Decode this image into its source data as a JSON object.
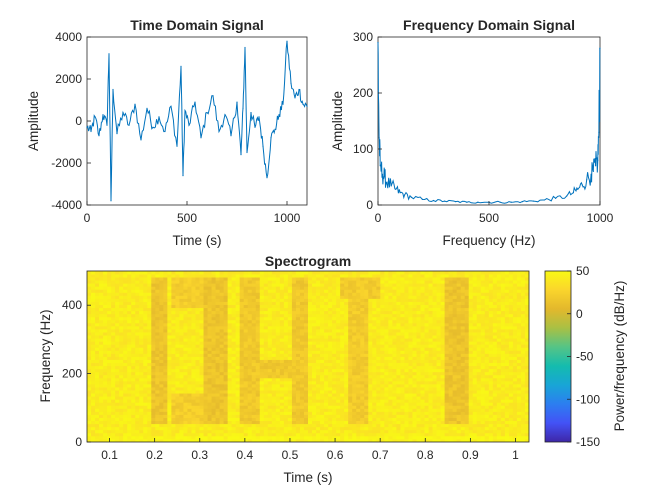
{
  "chart_data": [
    {
      "type": "line",
      "title": "Time Domain Signal",
      "xlabel": "Time (s)",
      "ylabel": "Amplitude",
      "xlim": [
        0,
        1100
      ],
      "ylim": [
        -4000,
        4000
      ],
      "xticks": [
        0,
        500,
        1000
      ],
      "yticks": [
        -4000,
        -2000,
        0,
        2000,
        4000
      ],
      "xtick_labels": [
        "0",
        "500",
        "1000"
      ],
      "ytick_labels": [
        "-4000",
        "-2000",
        "0",
        "2000",
        "4000"
      ],
      "grid": false,
      "series_color": "#0072BD",
      "x": [
        0,
        20,
        40,
        60,
        80,
        100,
        110,
        120,
        130,
        150,
        180,
        210,
        240,
        270,
        300,
        330,
        360,
        390,
        420,
        450,
        470,
        480,
        490,
        510,
        540,
        570,
        600,
        630,
        660,
        690,
        720,
        750,
        770,
        780,
        790,
        800,
        820,
        840,
        860,
        880,
        900,
        920,
        940,
        960,
        980,
        1000,
        1020,
        1040,
        1060,
        1080,
        1100
      ],
      "y": [
        -300,
        -500,
        200,
        -700,
        300,
        -200,
        3200,
        -3800,
        1500,
        -600,
        400,
        -200,
        800,
        -900,
        600,
        -300,
        200,
        -500,
        700,
        -1200,
        2600,
        -2600,
        500,
        -200,
        900,
        -800,
        400,
        1200,
        -500,
        300,
        -700,
        900,
        -1600,
        600,
        3500,
        -1500,
        400,
        -300,
        200,
        -1200,
        -2700,
        -800,
        -400,
        300,
        800,
        3800,
        1800,
        1100,
        1500,
        800,
        700
      ]
    },
    {
      "type": "line",
      "title": "Frequency Domain Signal",
      "xlabel": "Frequency (Hz)",
      "ylabel": "Amplitude",
      "xlim": [
        0,
        1000
      ],
      "ylim": [
        0,
        300
      ],
      "xticks": [
        0,
        500,
        1000
      ],
      "yticks": [
        0,
        100,
        200,
        300
      ],
      "xtick_labels": [
        "0",
        "500",
        "1000"
      ],
      "ytick_labels": [
        "0",
        "100",
        "200",
        "300"
      ],
      "grid": false,
      "series_color": "#0072BD",
      "x": [
        0,
        5,
        10,
        20,
        30,
        40,
        60,
        80,
        100,
        120,
        150,
        200,
        250,
        300,
        350,
        400,
        450,
        500,
        550,
        600,
        650,
        700,
        750,
        800,
        850,
        880,
        900,
        920,
        940,
        960,
        970,
        980,
        990,
        995,
        1000
      ],
      "y": [
        290,
        120,
        70,
        55,
        50,
        40,
        35,
        28,
        22,
        18,
        14,
        10,
        8,
        7,
        6,
        5,
        5,
        5,
        5,
        5,
        6,
        7,
        9,
        12,
        16,
        22,
        28,
        36,
        45,
        55,
        60,
        70,
        80,
        130,
        280
      ]
    },
    {
      "type": "heatmap",
      "title": "Spectrogram",
      "xlabel": "Time (s)",
      "ylabel": "Frequency (Hz)",
      "xlim": [
        0.05,
        1.03
      ],
      "ylim": [
        0,
        500
      ],
      "xticks": [
        0.1,
        0.2,
        0.3,
        0.4,
        0.5,
        0.6,
        0.7,
        0.8,
        0.9,
        1
      ],
      "yticks": [
        0,
        200,
        400
      ],
      "xtick_labels": [
        "0.1",
        "0.2",
        "0.3",
        "0.4",
        "0.5",
        "0.6",
        "0.7",
        "0.8",
        "0.9",
        "1"
      ],
      "ytick_labels": [
        "0",
        "200",
        "400"
      ],
      "colorbar": {
        "label": "Power/frequency (dB/Hz)",
        "range": [
          -150,
          50
        ],
        "ticks": [
          50,
          0,
          -50,
          -100,
          -150
        ],
        "tick_labels": [
          "50",
          "0",
          "-50",
          "-100",
          "-150"
        ],
        "colormap": [
          "#3E26A8",
          "#4352F6",
          "#2C7EF0",
          "#18A5D6",
          "#14BCAE",
          "#55C486",
          "#A9C044",
          "#E3B82C",
          "#FAD52C",
          "#F9F915"
        ]
      },
      "base_power_db": 42,
      "low_power_regions": [
        {
          "t": [
            0.19,
            0.23
          ],
          "f": [
            50,
            480
          ],
          "power_db": 15
        },
        {
          "t": [
            0.31,
            0.36
          ],
          "f": [
            50,
            480
          ],
          "power_db": 15
        },
        {
          "t": [
            0.24,
            0.31
          ],
          "f": [
            50,
            140
          ],
          "power_db": 22
        },
        {
          "t": [
            0.24,
            0.31
          ],
          "f": [
            390,
            480
          ],
          "power_db": 22
        },
        {
          "t": [
            0.39,
            0.43
          ],
          "f": [
            50,
            480
          ],
          "power_db": 18
        },
        {
          "t": [
            0.43,
            0.5
          ],
          "f": [
            190,
            240
          ],
          "power_db": 18
        },
        {
          "t": [
            0.5,
            0.54
          ],
          "f": [
            50,
            480
          ],
          "power_db": 18
        },
        {
          "t": [
            0.61,
            0.7
          ],
          "f": [
            420,
            480
          ],
          "power_db": 20
        },
        {
          "t": [
            0.63,
            0.67
          ],
          "f": [
            50,
            480
          ],
          "power_db": 20
        },
        {
          "t": [
            0.84,
            0.9
          ],
          "f": [
            50,
            480
          ],
          "power_db": 15
        }
      ]
    }
  ]
}
